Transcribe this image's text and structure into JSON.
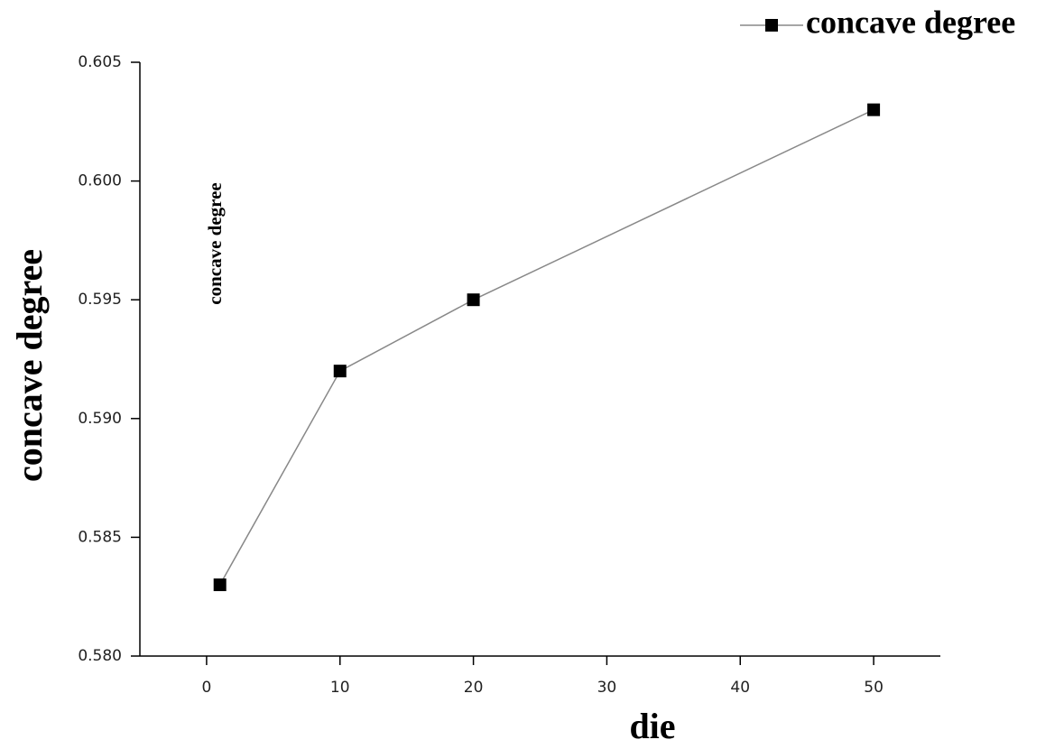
{
  "chart_data": {
    "type": "line",
    "x_label": "die",
    "y_label": "concave degree",
    "annotation": "concave degree",
    "x": [
      1,
      10,
      20,
      50
    ],
    "series": [
      {
        "name": "concave degree",
        "color": "#000000",
        "line_color": "#888888",
        "values": [
          0.583,
          0.592,
          0.595,
          0.603
        ]
      }
    ],
    "xlim": [
      -5,
      55
    ],
    "xticks": [
      0,
      10,
      20,
      30,
      40,
      50
    ],
    "ylim": [
      0.58,
      0.605
    ],
    "yticks": [
      {
        "value": 0.58,
        "label": "0.580"
      },
      0.585,
      {
        "value": 0.59,
        "label": "0.590"
      },
      0.595,
      {
        "value": 0.6,
        "label": "0.600"
      },
      0.605
    ],
    "legend": "top-right",
    "grid": false
  }
}
